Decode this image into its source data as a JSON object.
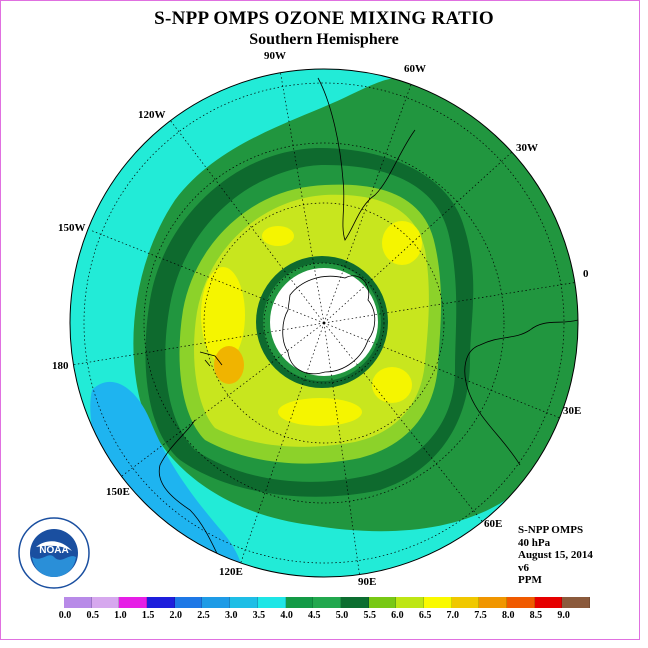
{
  "title": "S-NPP OMPS OZONE MIXING RATIO",
  "subtitle": "Southern Hemisphere",
  "longitude_labels": {
    "lon_90w": "90W",
    "lon_60w": "60W",
    "lon_30w": "30W",
    "lon_0": "0",
    "lon_30e": "30E",
    "lon_60e": "60E",
    "lon_90e": "90E",
    "lon_120e": "120E",
    "lon_150e": "150E",
    "lon_180": "180",
    "lon_150w": "150W",
    "lon_120w": "120W"
  },
  "info": {
    "instrument": "S-NPP OMPS",
    "level": "40 hPa",
    "date": "August 15, 2014",
    "version": "v6",
    "units": "PPM"
  },
  "logo_text": "NOAA",
  "colorbar": {
    "colors": [
      "#b88ae8",
      "#d6a8ee",
      "#e61ee6",
      "#1e1edc",
      "#1e78e6",
      "#1e9be6",
      "#1ebee6",
      "#1ee6e6",
      "#139a46",
      "#22a84e",
      "#0c6e30",
      "#78c814",
      "#bee614",
      "#fafa00",
      "#f0c800",
      "#f09600",
      "#f05a00",
      "#e60000",
      "#8b5a3c"
    ],
    "ticks": [
      "0.0",
      "0.5",
      "1.0",
      "1.5",
      "2.0",
      "2.5",
      "3.0",
      "3.5",
      "4.0",
      "4.5",
      "5.0",
      "5.5",
      "6.0",
      "6.5",
      "7.0",
      "7.5",
      "8.0",
      "8.5",
      "9.0"
    ]
  },
  "map_colors": {
    "low": "#1eb4f0",
    "cyan": "#22ebd7",
    "green": "#21963f",
    "dark_green": "#0e6a2e",
    "light_green": "#8cd22a",
    "yellow_green": "#c8e61e",
    "yellow": "#f5f500",
    "orange": "#f0b400",
    "polar": "#ffffff"
  }
}
